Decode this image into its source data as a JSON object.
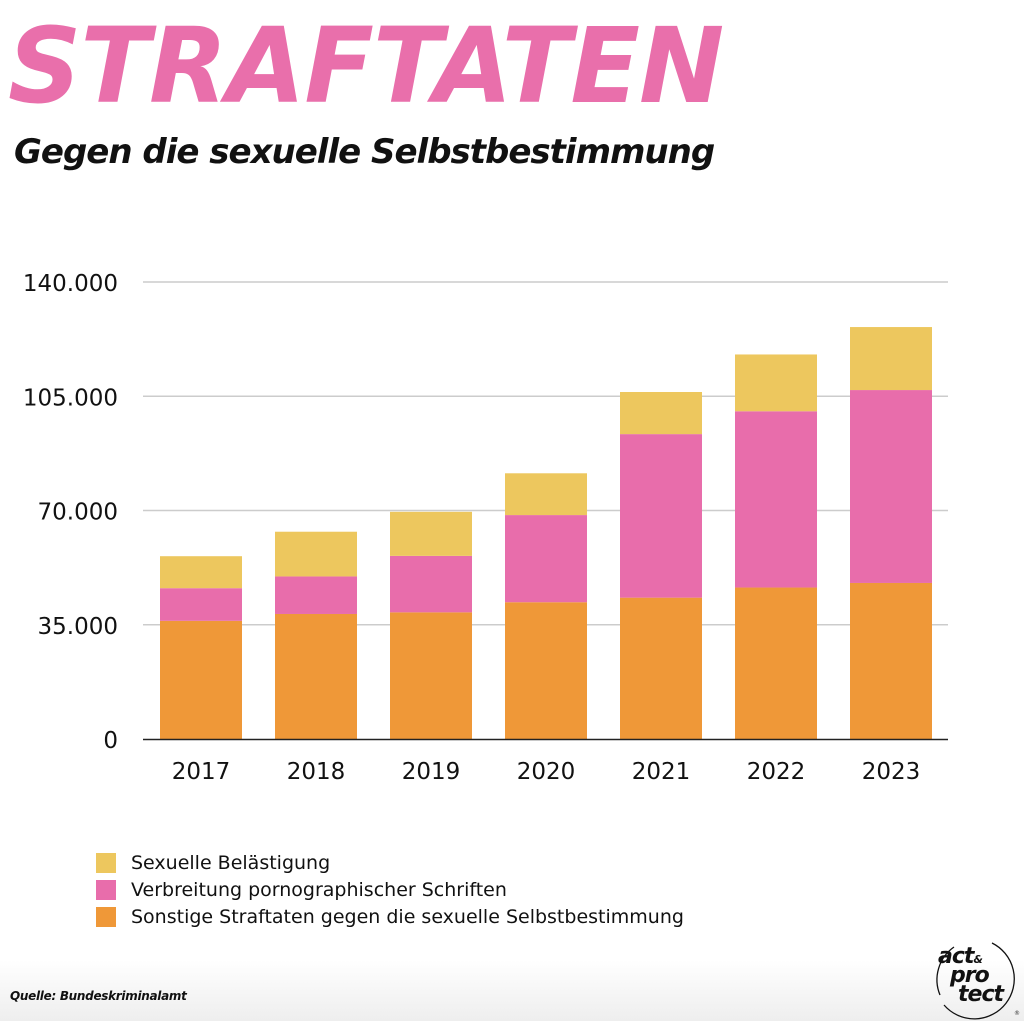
{
  "header": {
    "title": "STRAFTATEN",
    "subtitle": "Gegen die sexuelle Selbstbestimmung"
  },
  "colors": {
    "title": "#e96fab",
    "sexuelle_belaestigung": "#edc75e",
    "verbreitung": "#e86dab",
    "sonstige": "#ef9838",
    "grid": "#cccccc",
    "axis": "#222222"
  },
  "chart_data": {
    "type": "bar",
    "stacked": true,
    "title": "STRAFTATEN",
    "subtitle": "Gegen die sexuelle Selbstbestimmung",
    "xlabel": "",
    "ylabel": "",
    "categories": [
      "2017",
      "2018",
      "2019",
      "2020",
      "2021",
      "2022",
      "2023"
    ],
    "series": [
      {
        "name": "Sonstige Straftaten gegen die sexuelle Selbstbestimmung",
        "color": "#ef9838",
        "values": [
          36200,
          38300,
          38800,
          41900,
          43300,
          46400,
          47800
        ]
      },
      {
        "name": "Verbreitung pornographischer Schriften",
        "color": "#e86dab",
        "values": [
          10000,
          11500,
          17300,
          26700,
          50100,
          54000,
          59100
        ]
      },
      {
        "name": "Sexuelle Belästigung",
        "color": "#edc75e",
        "values": [
          9800,
          13700,
          13500,
          12800,
          12900,
          17400,
          19300
        ]
      }
    ],
    "ylim": [
      0,
      140000
    ],
    "yticks": [
      0,
      35000,
      70000,
      105000,
      140000
    ],
    "ytick_labels": [
      "0",
      "35.000",
      "70.000",
      "105.000",
      "140.000"
    ],
    "grid": true,
    "legend_position": "bottom-left"
  },
  "legend": {
    "items": [
      {
        "label": "Sexuelle Belästigung",
        "color": "#edc75e"
      },
      {
        "label": "Verbreitung pornographischer Schriften",
        "color": "#e86dab"
      },
      {
        "label": "Sonstige Straftaten gegen die sexuelle Selbstbestimmung",
        "color": "#ef9838"
      }
    ]
  },
  "footer": {
    "source": "Quelle: Bundeskriminalamt",
    "logo": {
      "line1": "act",
      "amp": "&",
      "line2": "pro",
      "line3": "tect",
      "reg": "®"
    }
  }
}
